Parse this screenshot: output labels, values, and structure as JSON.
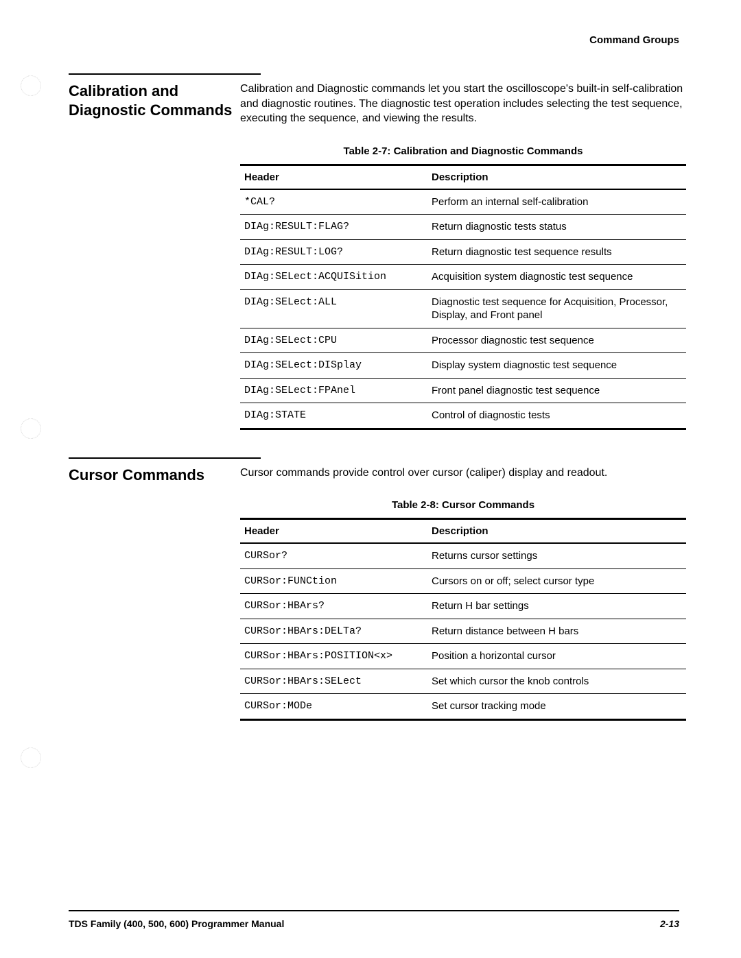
{
  "page_header": "Command Groups",
  "section1": {
    "heading": "Calibration and Diagnostic Commands",
    "intro": "Calibration and Diagnostic commands let you start the oscilloscope's built-in self-calibration and diagnostic routines. The diagnostic test operation includes selecting the test sequence, executing the sequence, and viewing the results.",
    "table_caption": "Table 2-7: Calibration and Diagnostic Commands",
    "columns": [
      "Header",
      "Description"
    ],
    "rows": [
      [
        "*CAL?",
        "Perform an internal self-calibration"
      ],
      [
        "DIAg:RESULT:FLAG?",
        "Return diagnostic tests status"
      ],
      [
        "DIAg:RESULT:LOG?",
        "Return diagnostic test sequence results"
      ],
      [
        "DIAg:SELect:ACQUISition",
        "Acquisition system diagnostic test sequence"
      ],
      [
        "DIAg:SELect:ALL",
        "Diagnostic test sequence for Acquisition, Processor, Display, and Front panel"
      ],
      [
        "DIAg:SELect:CPU",
        "Processor diagnostic test sequence"
      ],
      [
        "DIAg:SELect:DISplay",
        "Display system diagnostic test sequence"
      ],
      [
        "DIAg:SELect:FPAnel",
        "Front panel diagnostic test sequence"
      ],
      [
        "DIAg:STATE",
        "Control of diagnostic tests"
      ]
    ]
  },
  "section2": {
    "heading": "Cursor Commands",
    "intro": "Cursor commands provide control over cursor (caliper) display and readout.",
    "table_caption": "Table 2-8: Cursor Commands",
    "columns": [
      "Header",
      "Description"
    ],
    "rows": [
      [
        "CURSor?",
        "Returns cursor settings"
      ],
      [
        "CURSor:FUNCtion",
        "Cursors on or off; select cursor type"
      ],
      [
        "CURSor:HBArs?",
        "Return H bar settings"
      ],
      [
        "CURSor:HBArs:DELTa?",
        "Return distance between H bars"
      ],
      [
        "CURSor:HBArs:POSITION<x>",
        "Position a horizontal cursor"
      ],
      [
        "CURSor:HBArs:SELect",
        "Set which cursor the knob controls"
      ],
      [
        "CURSor:MODe",
        "Set cursor tracking mode"
      ]
    ]
  },
  "footer": {
    "left": "TDS Family (400, 500, 600) Programmer Manual",
    "right": "2-13"
  }
}
